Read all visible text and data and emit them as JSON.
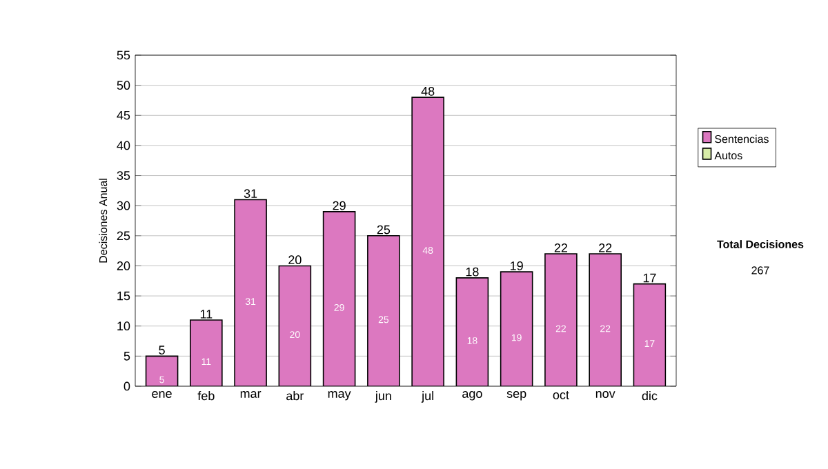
{
  "chart_data": {
    "type": "bar",
    "stacked": true,
    "ylabel": "Decisiones Anual",
    "categories": [
      "ene",
      "feb",
      "mar",
      "abr",
      "may",
      "jun",
      "jul",
      "ago",
      "sep",
      "oct",
      "nov",
      "dic"
    ],
    "series": [
      {
        "name": "Sentencias",
        "color": "#dc78c0",
        "values": [
          5,
          11,
          31,
          20,
          29,
          25,
          48,
          18,
          19,
          22,
          22,
          17
        ],
        "value_labels": [
          "5",
          "11",
          "31",
          "20",
          "29",
          "25",
          "48",
          "18",
          "19",
          "22",
          "22",
          "17"
        ]
      },
      {
        "name": "Autos",
        "color": "#d8eca8",
        "values": [
          0,
          0,
          0,
          0,
          0,
          0,
          0,
          0,
          0,
          0,
          0,
          0
        ]
      }
    ],
    "totals": [
      "5",
      "11",
      "31",
      "20",
      "29",
      "25",
      "48",
      "18",
      "19",
      "22",
      "22",
      "17"
    ],
    "ylim": [
      0,
      55
    ],
    "yticks": [
      0,
      5,
      10,
      15,
      20,
      25,
      30,
      35,
      40,
      45,
      50,
      55
    ],
    "grid": "y",
    "legend": "right",
    "annotations": [
      "Total Decisiones",
      "267"
    ]
  }
}
